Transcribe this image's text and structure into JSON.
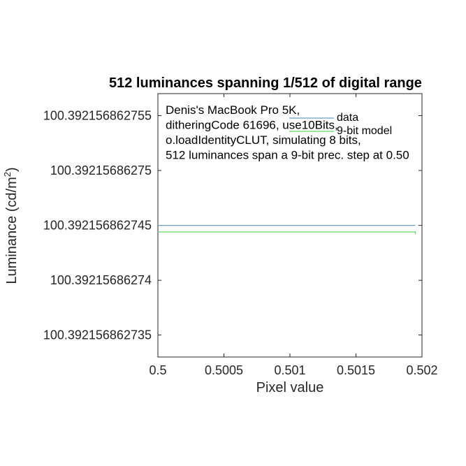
{
  "chart_data": {
    "type": "line",
    "title": "512 luminances spanning 1/512 of digital range",
    "xlabel": "Pixel value",
    "ylabel": "Luminance (cd/m2)",
    "xlim": [
      0.5,
      0.502
    ],
    "ylim": [
      100.392156862733,
      100.392156862757
    ],
    "x_ticks": [
      "0.5",
      "0.5005",
      "0.501",
      "0.5015",
      "0.502"
    ],
    "y_ticks": [
      "100.392156862735",
      "100.39215686274",
      "100.392156862745",
      "100.39215686275",
      "100.392156862755"
    ],
    "x_tick_values": [
      0.5,
      0.5005,
      0.501,
      0.5015,
      0.502
    ],
    "y_tick_values": [
      100.392156862735,
      100.39215686274,
      100.392156862745,
      100.39215686275,
      100.392156862755
    ],
    "annotation": [
      "Denis's MacBook Pro 5K,",
      "ditheringCode 61696, use10Bits,",
      "o.loadIdentityCLUT, simulating 8 bits,",
      "512 luminances span a 9-bit prec. step at 0.50"
    ],
    "legend_placement": "top-right",
    "grid": false,
    "series": [
      {
        "name": "data",
        "color": "#6a9fbf",
        "x": [
          0.5,
          0.50195
        ],
        "y": [
          100.392156862745,
          100.392156862745
        ]
      },
      {
        "name": "9-bit model",
        "color": "#5fd35f",
        "x": [
          0.5,
          0.50195,
          0.50195
        ],
        "y": [
          100.3921568627444,
          100.3921568627444,
          100.3921568627442
        ]
      }
    ]
  }
}
